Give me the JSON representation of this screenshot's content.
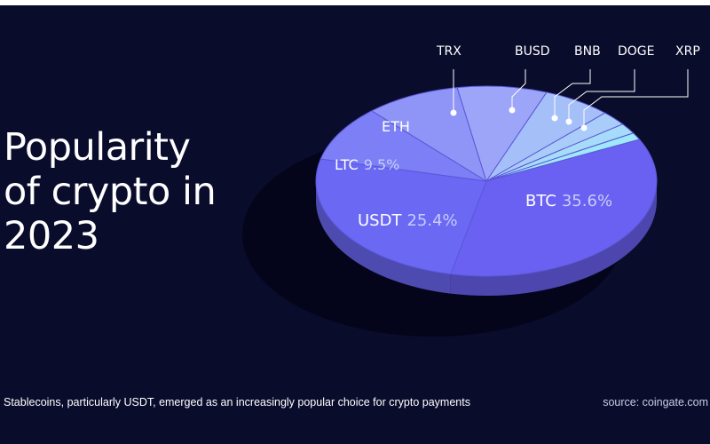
{
  "title_lines": [
    "Popularity",
    "of crypto in",
    "2023"
  ],
  "caption": "Stablecoins, particularly USDT, emerged as an increasingly popular choice for crypto payments",
  "source": "source: coingate.com",
  "colors": {
    "background": "#0a0c2c",
    "btc": "#6a61f2",
    "usdt": "#6b68f4",
    "ltc": "#7c7ff5",
    "eth": "#8e95f7",
    "trx": "#9da5f8",
    "busd": "#a5bff8",
    "bnb": "#a9cdf8",
    "doge": "#a6dbf9",
    "xrp": "#9fe8f9"
  },
  "chart_data": {
    "type": "pie",
    "slices": [
      {
        "label": "BTC",
        "value_text": "35.6%",
        "value": 35.6
      },
      {
        "label": "USDT",
        "value_text": "25.4%",
        "value": 25.4
      },
      {
        "label": "LTC",
        "value_text": "9.5%",
        "value": 9.5
      },
      {
        "label": "ETH",
        "value_text": "",
        "value": 9.0
      },
      {
        "label": "TRX",
        "value_text": "",
        "value": 8.5
      },
      {
        "label": "BUSD",
        "value_text": "",
        "value": 6.5
      },
      {
        "label": "BNB",
        "value_text": "",
        "value": 2.5
      },
      {
        "label": "DOGE",
        "value_text": "",
        "value": 1.8
      },
      {
        "label": "XRP",
        "value_text": "",
        "value": 1.2
      }
    ]
  }
}
